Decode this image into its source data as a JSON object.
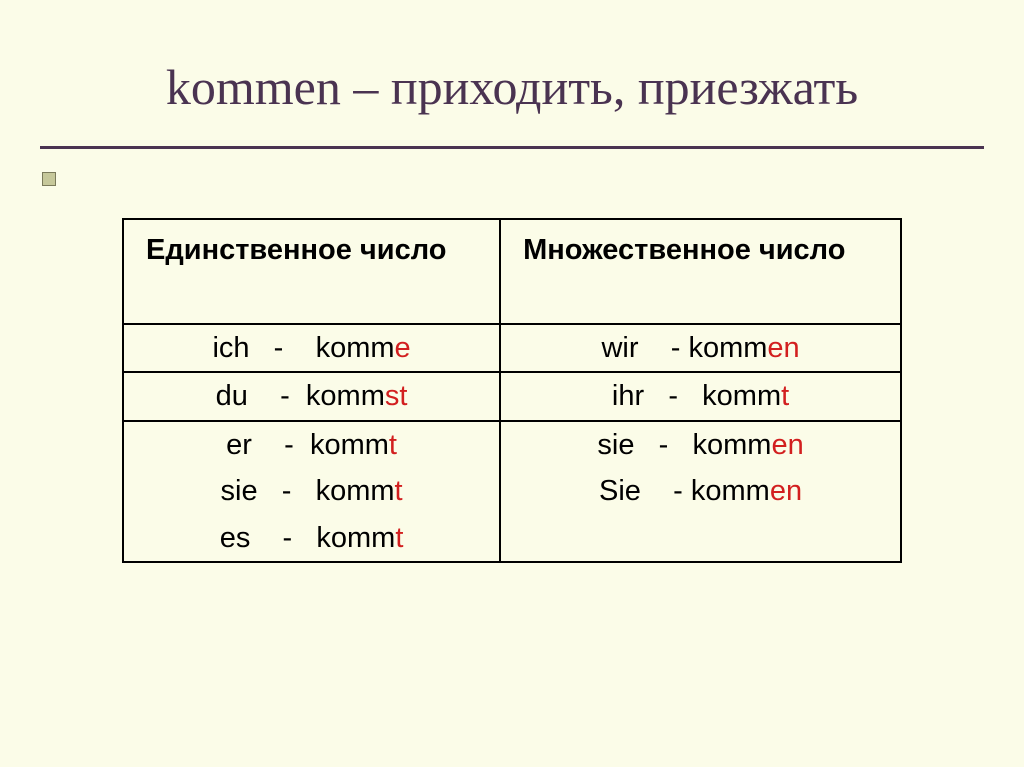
{
  "slide": {
    "background_color": "#fbfce8",
    "title": "kommen – приходить, приезжать",
    "title_color": "#4a3351",
    "title_fontsize": 50,
    "underline_color": "#4a3351"
  },
  "table": {
    "border_color": "#000000",
    "header_font_weight": "bold",
    "body_fontsize": 29,
    "suffix_color": "#d21f1f",
    "columns": [
      {
        "header": "Единственное число"
      },
      {
        "header": "Множественное число"
      }
    ],
    "rows": [
      {
        "left": [
          {
            "pronoun": "ich",
            "sep": "   -    ",
            "stem": "komm",
            "suffix": "e"
          }
        ],
        "right": [
          {
            "pronoun": "wir",
            "sep": "    - ",
            "stem": "komm",
            "suffix": "en"
          }
        ]
      },
      {
        "left": [
          {
            "pronoun": "du",
            "sep": "    -  ",
            "stem": "komm",
            "suffix": "st"
          }
        ],
        "right": [
          {
            "pronoun": "ihr",
            "sep": "   -   ",
            "stem": "komm",
            "suffix": "t"
          }
        ]
      },
      {
        "left": [
          {
            "pronoun": "er",
            "sep": "    -  ",
            "stem": "komm",
            "suffix": "t"
          },
          {
            "pronoun": "sie",
            "sep": "   -   ",
            "stem": "komm",
            "suffix": "t"
          },
          {
            "pronoun": "es",
            "sep": "    -   ",
            "stem": "komm",
            "suffix": "t"
          }
        ],
        "right": [
          {
            "pronoun": "sie",
            "sep": "   -   ",
            "stem": "komm",
            "suffix": "en"
          },
          {
            "pronoun": "Sie",
            "sep": "    - ",
            "stem": "komm",
            "suffix": "en"
          }
        ]
      }
    ]
  }
}
